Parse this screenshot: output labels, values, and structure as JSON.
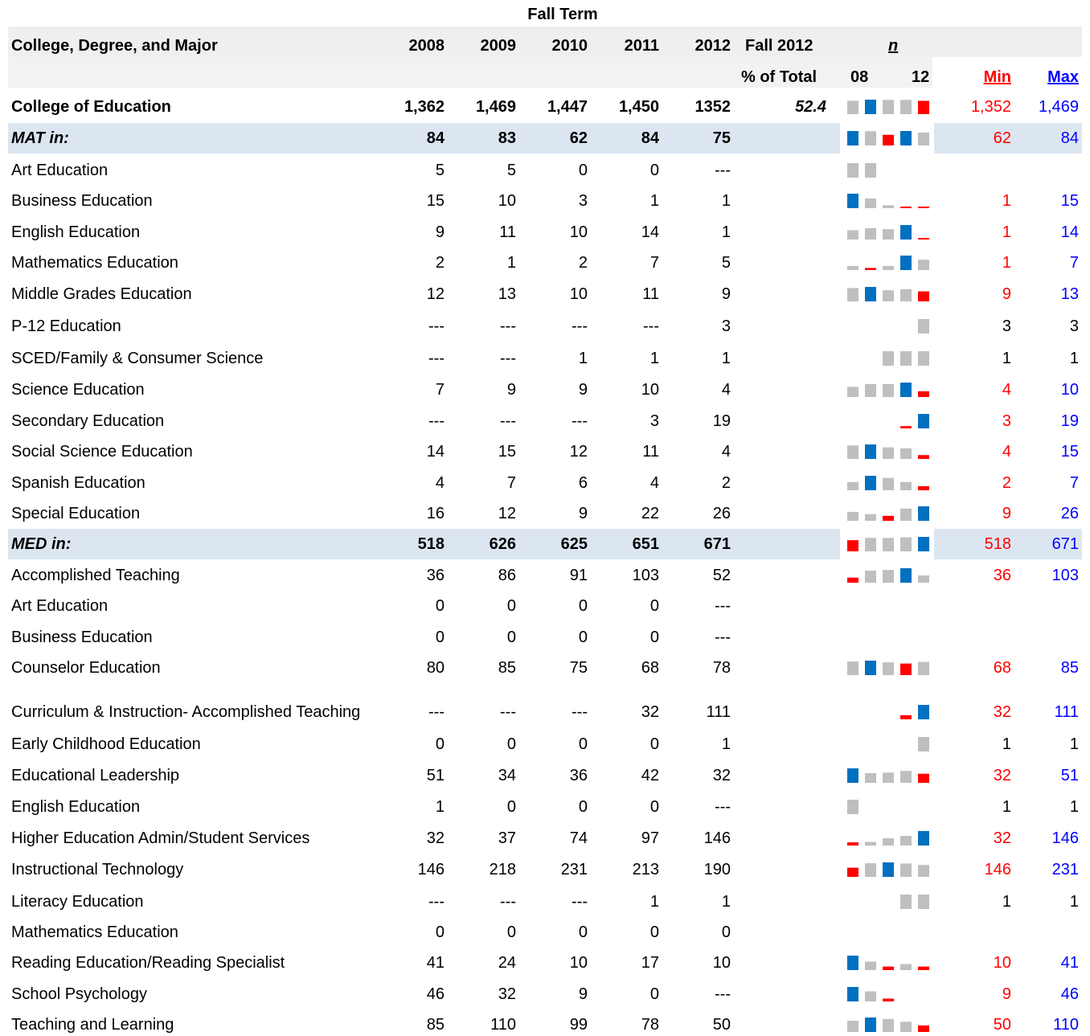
{
  "header": {
    "super": "Fall Term",
    "columns": [
      "College, Degree, and Major",
      "2008",
      "2009",
      "2010",
      "2011",
      "2012",
      "Fall 2012",
      "n"
    ],
    "sub": [
      "% of Total",
      "08",
      "12",
      "Min",
      "Max"
    ]
  },
  "table": {
    "rows": [
      {
        "kind": "total",
        "label": "College of Education",
        "values": [
          "1,362",
          "1,469",
          "1,447",
          "1,450",
          "1352"
        ],
        "pct": "52.4",
        "min": "1,352",
        "max": "1,469"
      },
      {
        "kind": "group",
        "label": "MAT in:",
        "values": [
          "84",
          "83",
          "62",
          "84",
          "75"
        ],
        "min": "62",
        "max": "84"
      },
      {
        "kind": "major",
        "label": "Art Education",
        "values": [
          "5",
          "5",
          "0",
          "0",
          "---"
        ]
      },
      {
        "kind": "major",
        "label": "Business Education",
        "values": [
          "15",
          "10",
          "3",
          "1",
          "1"
        ],
        "min": "1",
        "max": "15"
      },
      {
        "kind": "major",
        "label": "English Education",
        "values": [
          "9",
          "11",
          "10",
          "14",
          "1"
        ],
        "min": "1",
        "max": "14"
      },
      {
        "kind": "major",
        "label": "Mathematics Education",
        "values": [
          "2",
          "1",
          "2",
          "7",
          "5"
        ],
        "min": "1",
        "max": "7"
      },
      {
        "kind": "major",
        "label": "Middle Grades Education",
        "values": [
          "12",
          "13",
          "10",
          "11",
          "9"
        ],
        "min": "9",
        "max": "13"
      },
      {
        "kind": "major",
        "label": "P-12 Education",
        "values": [
          "---",
          "---",
          "---",
          "---",
          "3"
        ],
        "min": "3",
        "max": "3"
      },
      {
        "kind": "major",
        "label": "SCED/Family & Consumer Science",
        "values": [
          "---",
          "---",
          "1",
          "1",
          "1"
        ],
        "min": "1",
        "max": "1"
      },
      {
        "kind": "major",
        "label": "Science Education",
        "values": [
          "7",
          "9",
          "9",
          "10",
          "4"
        ],
        "min": "4",
        "max": "10"
      },
      {
        "kind": "major",
        "label": "Secondary Education",
        "values": [
          "---",
          "---",
          "---",
          "3",
          "19"
        ],
        "min": "3",
        "max": "19"
      },
      {
        "kind": "major",
        "label": "Social Science Education",
        "values": [
          "14",
          "15",
          "12",
          "11",
          "4"
        ],
        "min": "4",
        "max": "15"
      },
      {
        "kind": "major",
        "label": "Spanish Education",
        "values": [
          "4",
          "7",
          "6",
          "4",
          "2"
        ],
        "min": "2",
        "max": "7"
      },
      {
        "kind": "major",
        "label": "Special Education",
        "values": [
          "16",
          "12",
          "9",
          "22",
          "26"
        ],
        "min": "9",
        "max": "26"
      },
      {
        "kind": "group",
        "label": "MED in:",
        "values": [
          "518",
          "626",
          "625",
          "651",
          "671"
        ],
        "min": "518",
        "max": "671"
      },
      {
        "kind": "major",
        "label": "Accomplished Teaching",
        "values": [
          "36",
          "86",
          "91",
          "103",
          "52"
        ],
        "min": "36",
        "max": "103"
      },
      {
        "kind": "major",
        "label": "Art Education",
        "values": [
          "0",
          "0",
          "0",
          "0",
          "---"
        ]
      },
      {
        "kind": "major",
        "label": "Business Education",
        "values": [
          "0",
          "0",
          "0",
          "0",
          "---"
        ]
      },
      {
        "kind": "major",
        "label": "Counselor Education",
        "values": [
          "80",
          "85",
          "75",
          "68",
          "78"
        ],
        "min": "68",
        "max": "85"
      },
      {
        "kind": "major",
        "label": "Curriculum & Instruction- Accomplished Teaching",
        "values": [
          "---",
          "---",
          "---",
          "32",
          "111"
        ],
        "min": "32",
        "max": "111"
      },
      {
        "kind": "major",
        "label": "Early Childhood Education",
        "values": [
          "0",
          "0",
          "0",
          "0",
          "1"
        ],
        "min": "1",
        "max": "1"
      },
      {
        "kind": "major",
        "label": "Educational Leadership",
        "values": [
          "51",
          "34",
          "36",
          "42",
          "32"
        ],
        "min": "32",
        "max": "51"
      },
      {
        "kind": "major",
        "label": "English Education",
        "values": [
          "1",
          "0",
          "0",
          "0",
          "---"
        ],
        "min": "1",
        "max": "1"
      },
      {
        "kind": "major",
        "label": "Higher Education Admin/Student Services",
        "values": [
          "32",
          "37",
          "74",
          "97",
          "146"
        ],
        "min": "32",
        "max": "146"
      },
      {
        "kind": "major",
        "label": "Instructional Technology",
        "values": [
          "146",
          "218",
          "231",
          "213",
          "190"
        ],
        "min": "146",
        "max": "231"
      },
      {
        "kind": "major",
        "label": "Literacy Education",
        "values": [
          "---",
          "---",
          "---",
          "1",
          "1"
        ],
        "min": "1",
        "max": "1"
      },
      {
        "kind": "major",
        "label": "Mathematics Education",
        "values": [
          "0",
          "0",
          "0",
          "0",
          "0"
        ]
      },
      {
        "kind": "major",
        "label": "Reading Education/Reading Specialist",
        "values": [
          "41",
          "24",
          "10",
          "17",
          "10"
        ],
        "min": "10",
        "max": "41"
      },
      {
        "kind": "major",
        "label": "School Psychology",
        "values": [
          "46",
          "32",
          "9",
          "0",
          "---"
        ],
        "min": "9",
        "max": "46"
      },
      {
        "kind": "major",
        "label": "Teaching and Learning",
        "values": [
          "85",
          "110",
          "99",
          "78",
          "50"
        ],
        "min": "50",
        "max": "110"
      }
    ]
  }
}
